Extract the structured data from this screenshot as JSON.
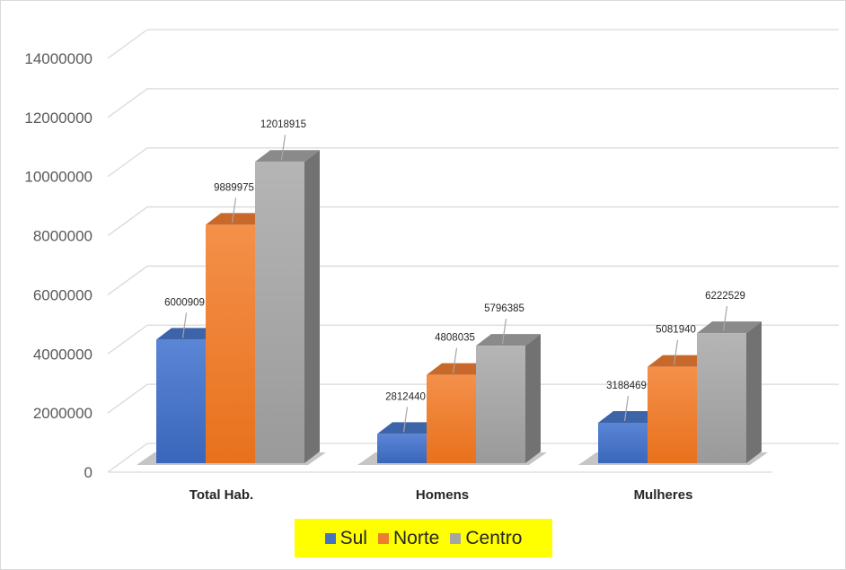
{
  "chart_data": {
    "type": "bar",
    "style": "3d-clustered-column",
    "categories": [
      "Total Hab.",
      "Homens",
      "Mulheres"
    ],
    "series": [
      {
        "name": "Sul",
        "values": [
          6000909,
          2812440,
          3188469
        ]
      },
      {
        "name": "Norte",
        "values": [
          9889975,
          4808035,
          5081940
        ]
      },
      {
        "name": "Centro",
        "values": [
          12018915,
          5796385,
          6222529
        ]
      }
    ],
    "data_labels": [
      [
        "6000909",
        "2812440",
        "3188469"
      ],
      [
        "9889975",
        "4808035",
        "5081940"
      ],
      [
        "12018915",
        "5796385",
        "6222529"
      ]
    ],
    "yticks": [
      "0",
      "2000000",
      "4000000",
      "6000000",
      "8000000",
      "10000000",
      "12000000",
      "14000000"
    ],
    "ylim": [
      0,
      14000000
    ],
    "title": "",
    "xlabel": "",
    "ylabel": "",
    "grid": true,
    "legend_position": "bottom",
    "colors": {
      "Sul": "#4472c4",
      "Norte": "#ed7d31",
      "Centro": "#a5a5a5",
      "legend_background": "#ffff00",
      "gridline": "#d9d9d9"
    }
  }
}
